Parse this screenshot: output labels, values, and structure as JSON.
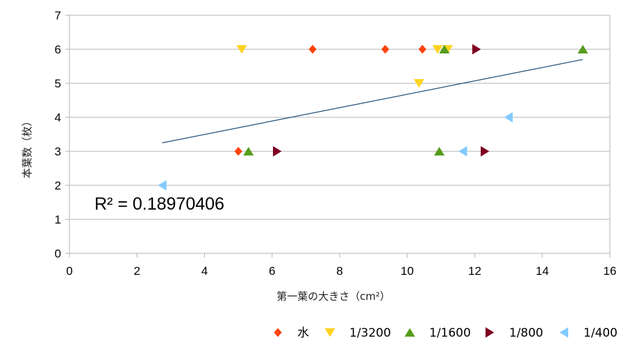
{
  "chart_data": {
    "type": "scatter",
    "xlabel": "第一葉の大きさ（cm²）",
    "ylabel": "本葉数（枚）",
    "xlim": [
      0,
      16
    ],
    "ylim": [
      0,
      7
    ],
    "x_ticks": [
      "0",
      "2",
      "4",
      "6",
      "8",
      "10",
      "12",
      "14",
      "16"
    ],
    "y_ticks": [
      "0",
      "1",
      "2",
      "3",
      "4",
      "5",
      "6",
      "7"
    ],
    "grid": "horizontal",
    "legend_position": "bottom",
    "annotation": "R² = 0.18970406",
    "trendline": {
      "x": [
        2.75,
        15.2
      ],
      "y": [
        3.25,
        5.7
      ],
      "color": "#1f4e79"
    },
    "series": [
      {
        "name": "水",
        "marker": "diamond",
        "color": "#ff420e",
        "x": [
          5.0,
          7.2,
          9.35,
          10.45
        ],
        "y": [
          3,
          6,
          6,
          6
        ]
      },
      {
        "name": "1/3200",
        "marker": "triangle-down",
        "color": "#ffd320",
        "x": [
          5.1,
          10.35,
          10.9,
          11.2
        ],
        "y": [
          6,
          5,
          6,
          6
        ]
      },
      {
        "name": "1/1600",
        "marker": "triangle-up",
        "color": "#579d1c",
        "x": [
          5.3,
          10.95,
          11.1,
          15.2
        ],
        "y": [
          3,
          3,
          6,
          6
        ]
      },
      {
        "name": "1/800",
        "marker": "triangle-right",
        "color": "#7e0021",
        "x": [
          6.15,
          12.05,
          12.3
        ],
        "y": [
          3,
          6,
          3
        ]
      },
      {
        "name": "1/400",
        "marker": "triangle-left",
        "color": "#83caff",
        "x": [
          2.75,
          11.65,
          13.0
        ],
        "y": [
          2,
          3,
          4
        ]
      }
    ]
  }
}
